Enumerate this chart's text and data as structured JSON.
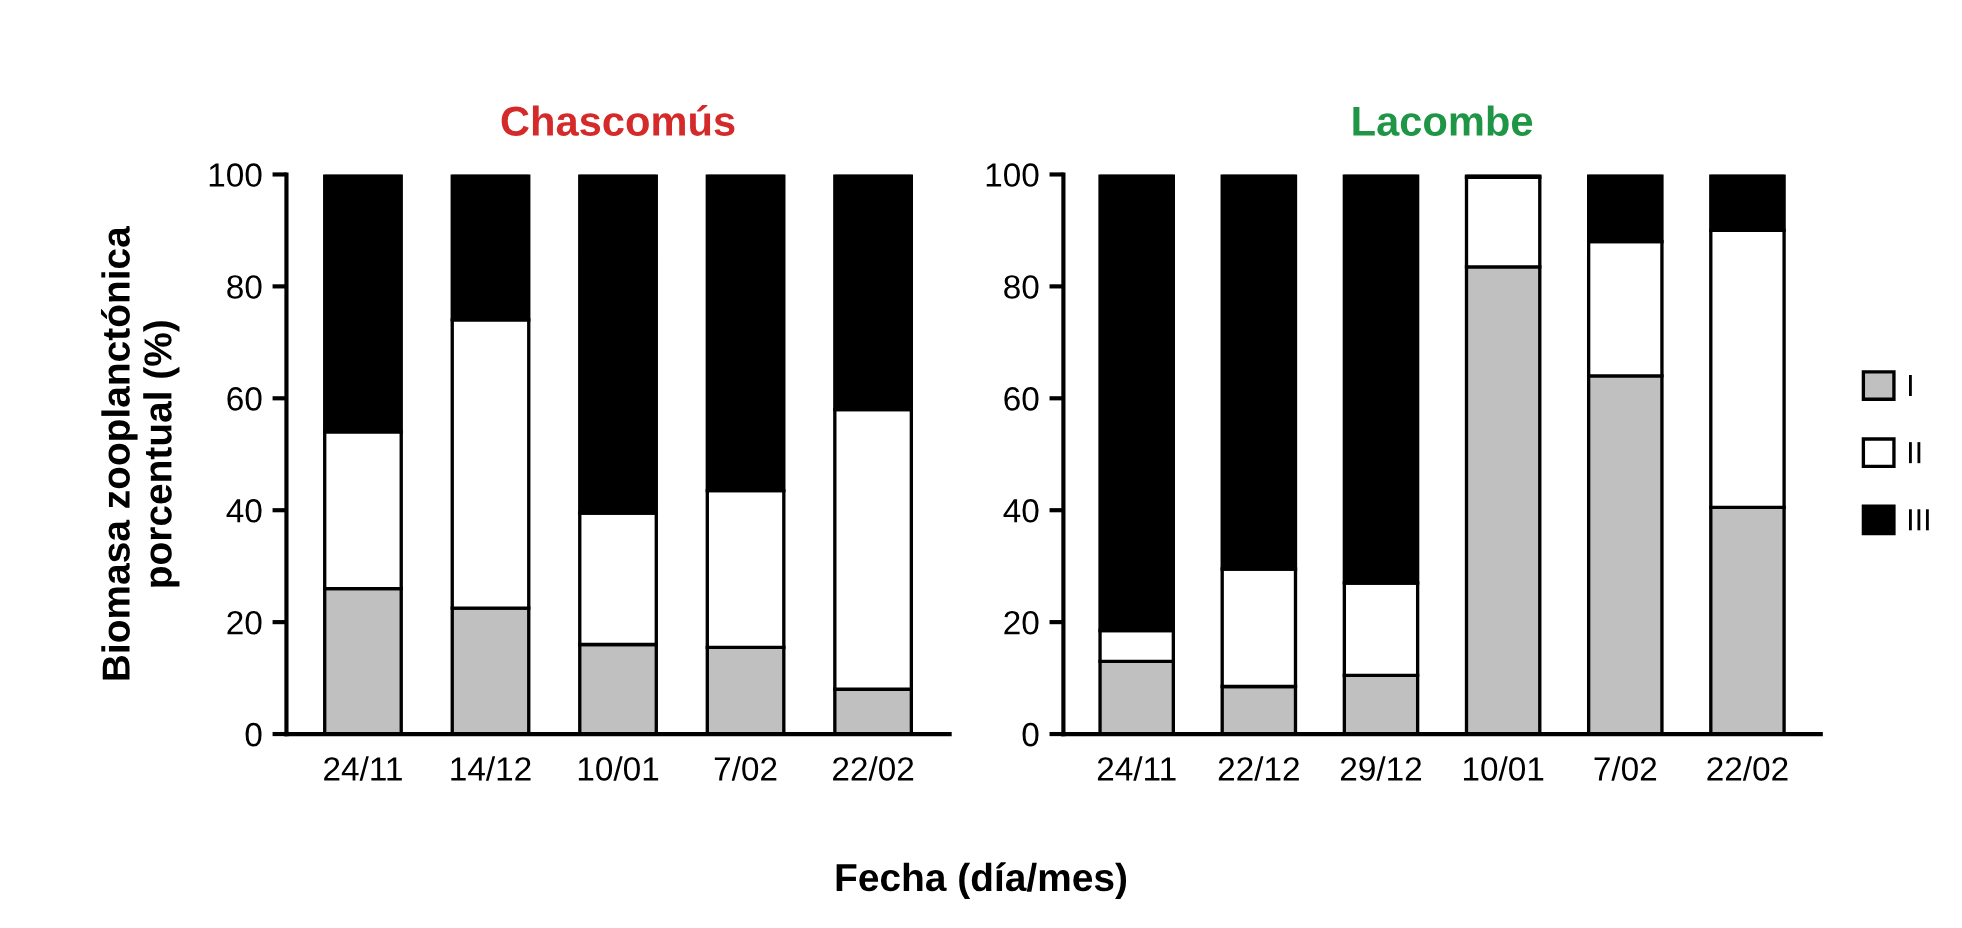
{
  "chart_data": [
    {
      "type": "bar",
      "stacked": true,
      "title": "Chascomús",
      "ylabel": "Biomasa zooplanctónica\nporcentual (%)",
      "xlabel": "Fecha (día/mes)",
      "categories": [
        "24/11",
        "14/12",
        "10/01",
        "7/02",
        "22/02"
      ],
      "series": [
        {
          "color": "#c0c0c0",
          "values": [
            26,
            22.5,
            16,
            15.5,
            8
          ]
        },
        {
          "color": "#ffffff",
          "values": [
            28,
            51.5,
            23.5,
            28,
            50
          ]
        },
        {
          "color": "#000000",
          "values": [
            46,
            26,
            60.5,
            56.5,
            42
          ]
        }
      ],
      "ylim": [
        0,
        100
      ],
      "yticks": [
        0,
        20,
        40,
        60,
        80,
        100
      ],
      "grid": false
    },
    {
      "type": "bar",
      "stacked": true,
      "title": "Lacombe",
      "categories": [
        "24/11",
        "22/12",
        "29/12",
        "10/01",
        "7/02",
        "22/02"
      ],
      "series": [
        {
          "name": "I",
          "color": "#c0c0c0",
          "values": [
            13,
            8.5,
            10.5,
            83.5,
            64,
            40.5
          ]
        },
        {
          "name": "II",
          "color": "#ffffff",
          "values": [
            5.5,
            21,
            16.5,
            16,
            24,
            49.5
          ]
        },
        {
          "name": "III",
          "color": "#000000",
          "values": [
            81.5,
            70.5,
            73,
            0.5,
            12,
            10
          ]
        }
      ],
      "ylim": [
        0,
        100
      ],
      "yticks": [
        0,
        20,
        40,
        60,
        80,
        100
      ],
      "grid": false,
      "legend": "right"
    }
  ]
}
